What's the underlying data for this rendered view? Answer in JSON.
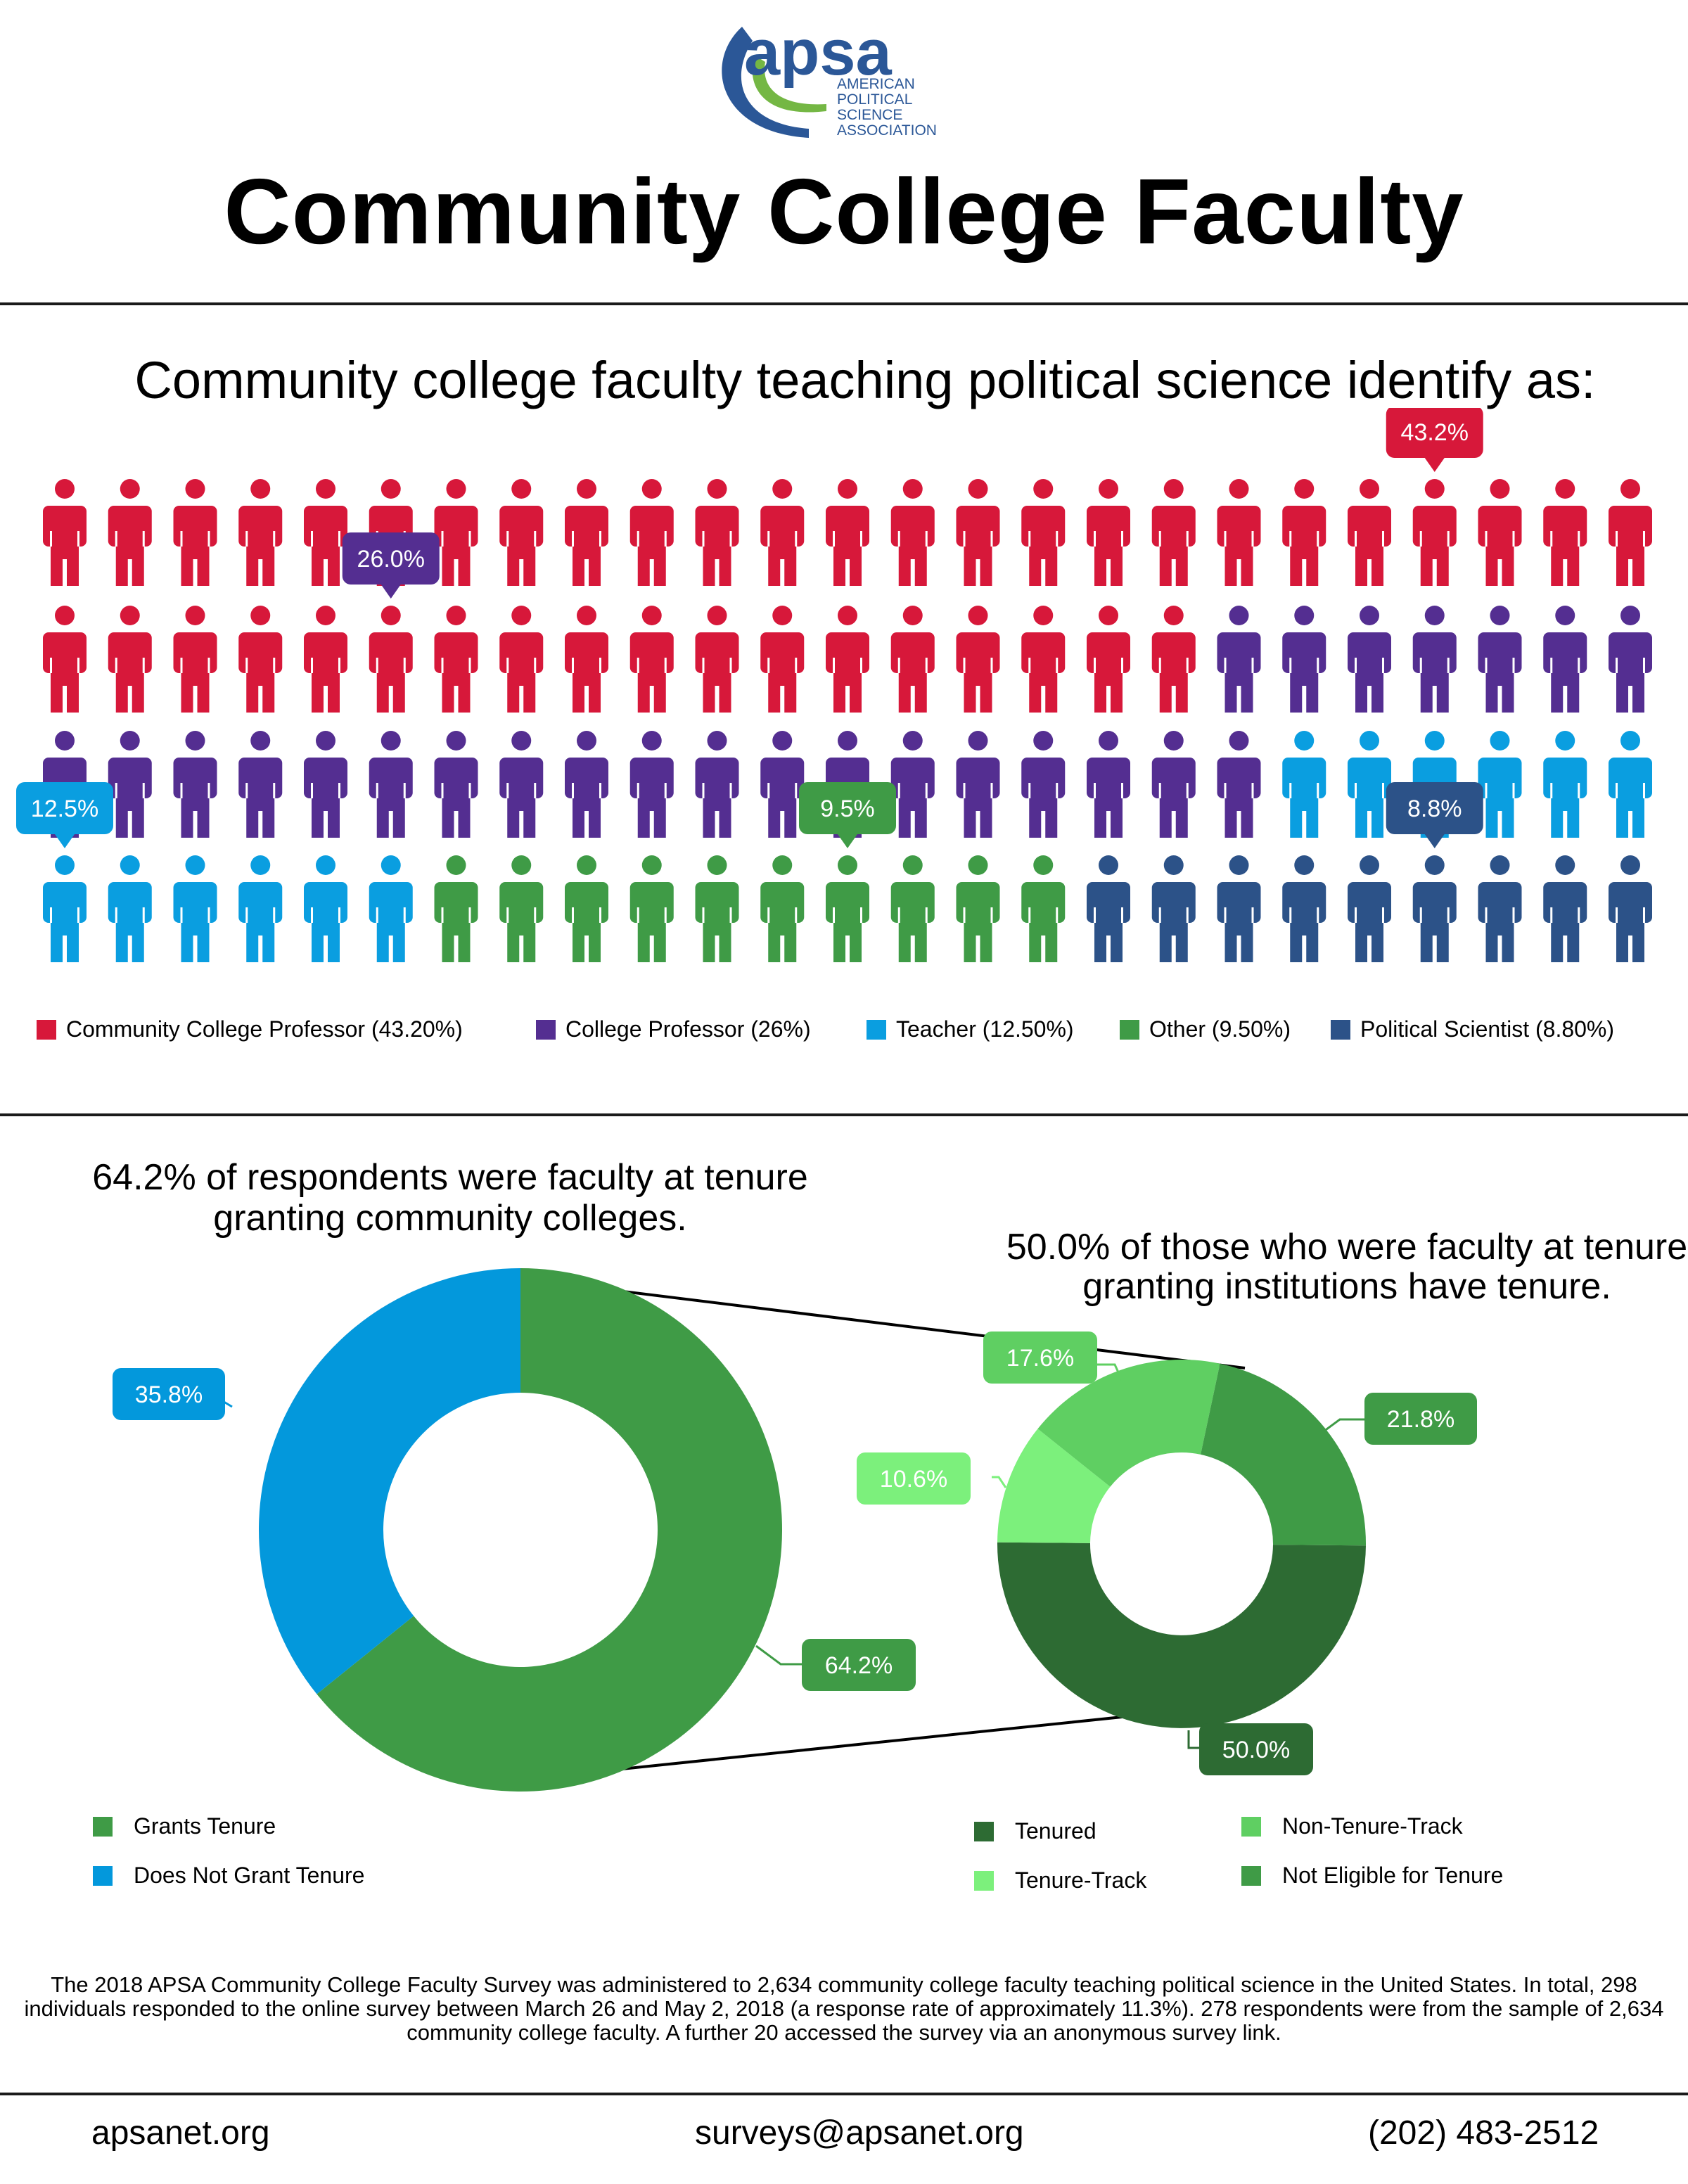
{
  "logo": {
    "wordmark": "apsa",
    "lines": [
      "AMERICAN",
      "POLITICAL",
      "SCIENCE",
      "ASSOCIATION"
    ],
    "colors": {
      "blue": "#2b5797",
      "green": "#74b744"
    }
  },
  "title": "Community College Faculty",
  "section1": {
    "heading": "Community college faculty teaching political science identify as:"
  },
  "colors": {
    "community_college_professor": "#d7183a",
    "college_professor": "#542e91",
    "teacher": "#0a9ee0",
    "other": "#3f9b46",
    "political_scientist": "#2c5288",
    "grants_tenure": "#3f9b46",
    "does_not_grant": "#0398dc",
    "tenured": "#2d6b33",
    "tenure_track": "#7cf07c",
    "non_tenure_track": "#5fcf62",
    "not_eligible": "#3f9b46"
  },
  "section2": {
    "left_caption": "64.2% of respondents were faculty at tenure granting community colleges.",
    "right_caption": "50.0% of those who were faculty at tenure granting institutions have tenure."
  },
  "chart_data": [
    {
      "type": "pictograph",
      "title": "Community college faculty teaching political science identify as:",
      "categories": [
        "Community College Professor",
        "College Professor",
        "Teacher",
        "Other",
        "Political Scientist"
      ],
      "values": [
        43.2,
        26.0,
        12.5,
        9.5,
        8.8
      ],
      "icon_counts": [
        43,
        26,
        12,
        10,
        9
      ],
      "callouts": [
        "43.2%",
        "26.0%",
        "12.5%",
        "9.5%",
        "8.8%"
      ],
      "legend": [
        "Community College Professor (43.20%)",
        "College Professor (26%)",
        "Teacher (12.50%)",
        "Other (9.50%)",
        "Political Scientist (8.80%)"
      ],
      "legend_placement": "bottom"
    },
    {
      "type": "pie",
      "categories": [
        "Grants Tenure",
        "Does Not Grant Tenure"
      ],
      "values": [
        64.2,
        35.8
      ],
      "labels": [
        "64.2%",
        "35.8%"
      ],
      "legend_placement": "bottom-left"
    },
    {
      "type": "pie",
      "categories": [
        "Tenured",
        "Tenure-Track",
        "Non-Tenure-Track",
        "Not Eligible for Tenure"
      ],
      "values": [
        50.0,
        10.6,
        17.6,
        21.8
      ],
      "labels": [
        "50.0%",
        "10.6%",
        "17.6%",
        "21.8%"
      ],
      "legend_placement": "bottom-right"
    }
  ],
  "footnote": "The 2018 APSA Community College Faculty Survey was administered to 2,634 community college faculty teaching political science in the United States. In total, 298 individuals responded to the online survey between March 26 and May 2, 2018 (a response rate of approximately 11.3%). 278 respondents were from the sample of 2,634 community college faculty. A further 20 accessed the survey via an anonymous survey link.",
  "footer": {
    "website": "apsanet.org",
    "email": "surveys@apsanet.org",
    "phone": "(202) 483-2512"
  }
}
